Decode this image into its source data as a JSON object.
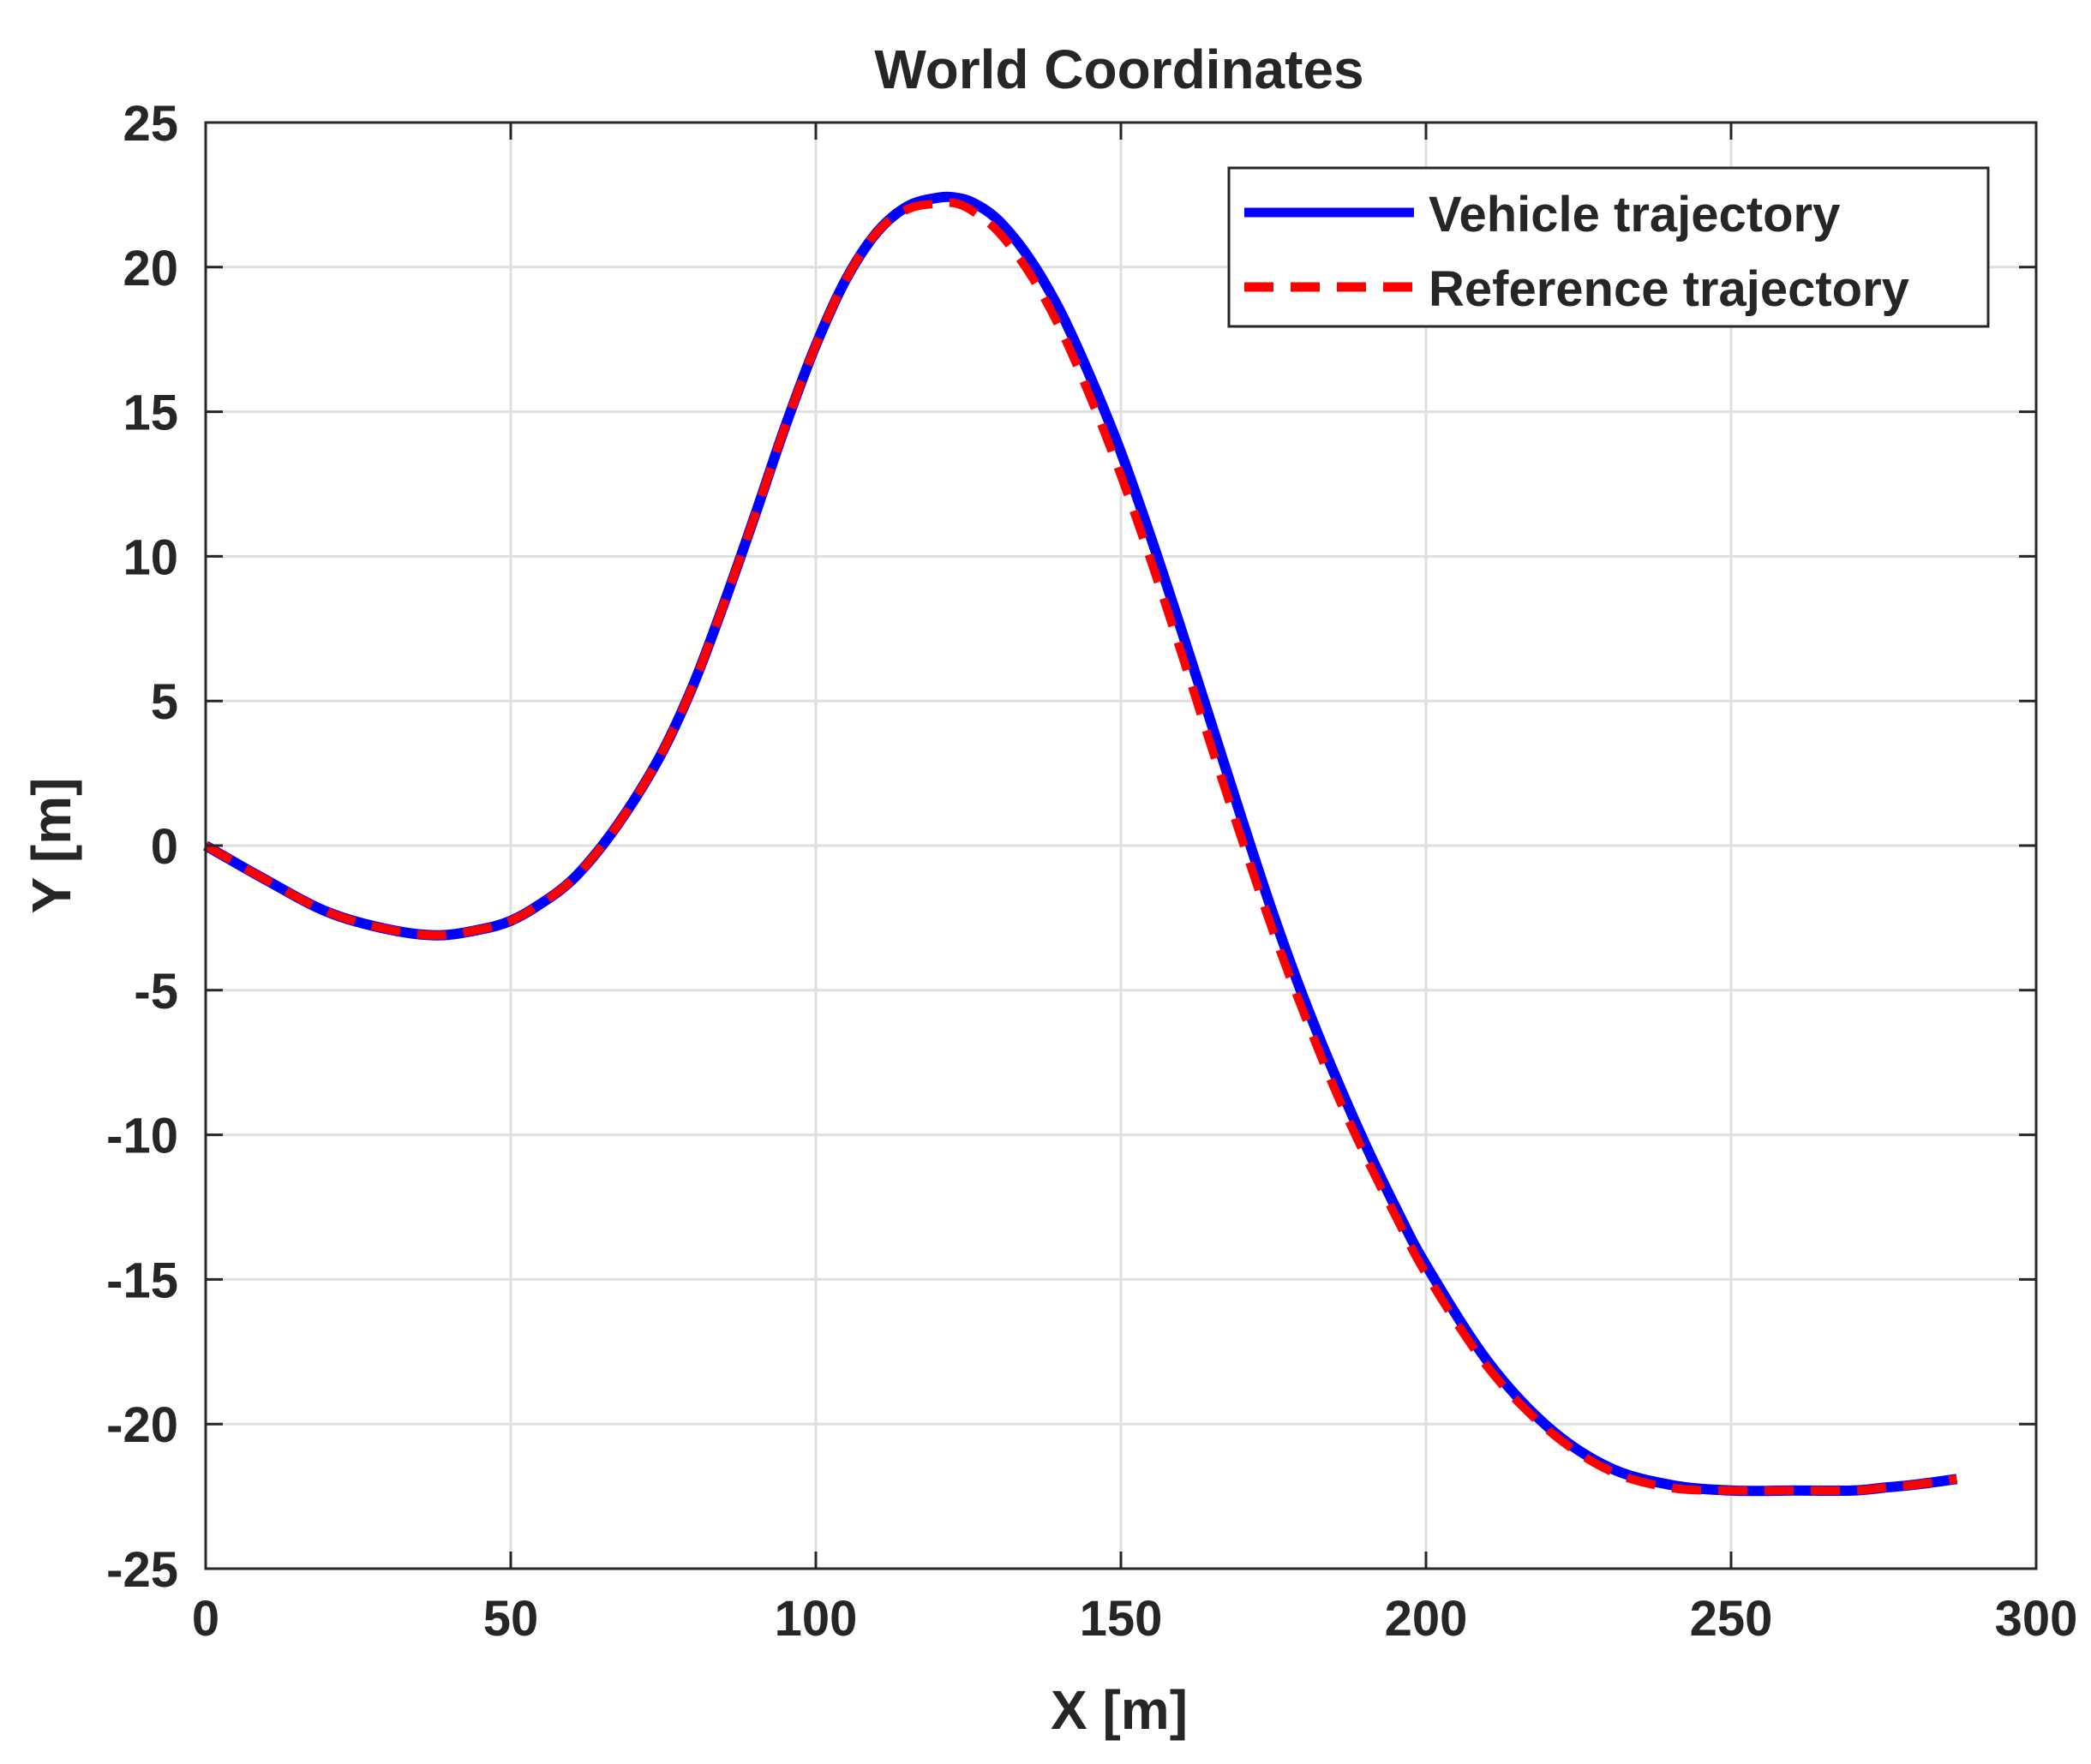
{
  "chart_data": {
    "type": "line",
    "title": "World Coordinates",
    "xlabel": "X [m]",
    "ylabel": "Y [m]",
    "xlim": [
      0,
      300
    ],
    "ylim": [
      -25,
      25
    ],
    "xticks": [
      0,
      50,
      100,
      150,
      200,
      250,
      300
    ],
    "yticks": [
      -25,
      -20,
      -15,
      -10,
      -5,
      0,
      5,
      10,
      15,
      20,
      25
    ],
    "grid": true,
    "legend_position": "top-right",
    "series": [
      {
        "name": "Vehicle trajectory",
        "color": "#0000ff",
        "style": "solid",
        "x": [
          0,
          10,
          20,
          30,
          38,
          45,
          50,
          55,
          60,
          65,
          70,
          75,
          80,
          85,
          90,
          95,
          100,
          105,
          110,
          115,
          120,
          123,
          126,
          130,
          135,
          140,
          145,
          150,
          155,
          160,
          165,
          170,
          175,
          180,
          185,
          190,
          195,
          200,
          210,
          220,
          230,
          240,
          250,
          260,
          270,
          275,
          280,
          287
        ],
        "y": [
          0,
          -1.2,
          -2.3,
          -2.9,
          -3.1,
          -2.9,
          -2.6,
          -2.0,
          -1.2,
          0.0,
          1.5,
          3.3,
          5.6,
          8.4,
          11.4,
          14.5,
          17.3,
          19.6,
          21.2,
          22.1,
          22.4,
          22.4,
          22.2,
          21.6,
          20.3,
          18.5,
          16.2,
          13.6,
          10.6,
          7.4,
          4.1,
          0.8,
          -2.4,
          -5.3,
          -7.9,
          -10.3,
          -12.5,
          -14.5,
          -17.8,
          -20.1,
          -21.5,
          -22.1,
          -22.3,
          -22.3,
          -22.3,
          -22.2,
          -22.1,
          -21.9
        ]
      },
      {
        "name": "Reference trajectory",
        "color": "#ff0000",
        "style": "dashed",
        "x": [
          0,
          10,
          20,
          30,
          38,
          45,
          50,
          55,
          60,
          65,
          70,
          75,
          80,
          85,
          90,
          95,
          100,
          105,
          110,
          115,
          120,
          123,
          126,
          130,
          135,
          140,
          145,
          150,
          155,
          160,
          165,
          170,
          175,
          180,
          185,
          190,
          195,
          200,
          210,
          220,
          230,
          240,
          250,
          260,
          270,
          275,
          280,
          287
        ],
        "y": [
          0,
          -1.2,
          -2.3,
          -2.9,
          -3.1,
          -2.9,
          -2.6,
          -2.0,
          -1.2,
          0.0,
          1.5,
          3.3,
          5.6,
          8.4,
          11.4,
          14.5,
          17.3,
          19.6,
          21.2,
          22.0,
          22.2,
          22.2,
          21.9,
          21.2,
          19.8,
          17.9,
          15.5,
          12.8,
          9.8,
          6.6,
          3.3,
          0.1,
          -3.0,
          -5.8,
          -8.4,
          -10.7,
          -12.8,
          -14.8,
          -18.0,
          -20.2,
          -21.6,
          -22.2,
          -22.3,
          -22.3,
          -22.3,
          -22.2,
          -22.1,
          -21.9
        ]
      }
    ]
  }
}
